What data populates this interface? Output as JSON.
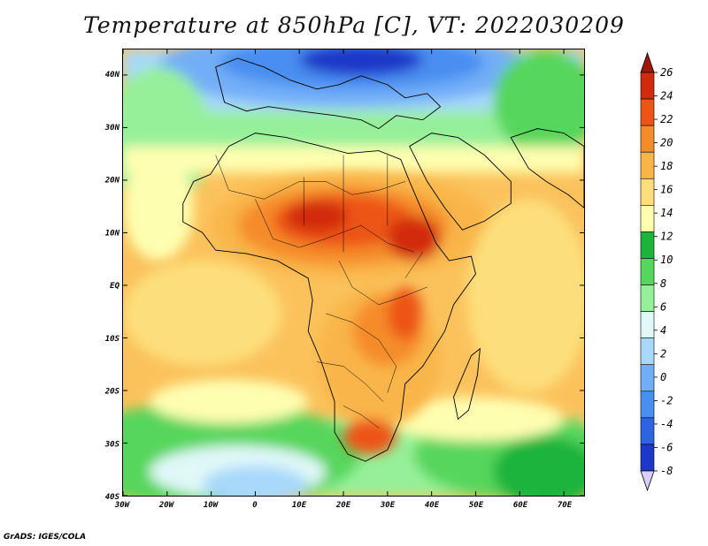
{
  "title": "Temperature at 850hPa [C], VT: 2022030209",
  "credit": "GrADS: IGES/COLA",
  "map": {
    "lon_labels": [
      "30W",
      "20W",
      "10W",
      "0",
      "10E",
      "20E",
      "30E",
      "40E",
      "50E",
      "60E",
      "70E"
    ],
    "lat_labels": [
      "40N",
      "30N",
      "20N",
      "10N",
      "EQ",
      "10S",
      "20S",
      "30S",
      "40S"
    ]
  },
  "colorbar": {
    "colors": [
      "#0a0a70",
      "#1d38c8",
      "#2e64e0",
      "#4a8ef0",
      "#72aef8",
      "#a8d8fa",
      "#e0f8f8",
      "#96f09a",
      "#56d65c",
      "#1eb43c",
      "#fefeb0",
      "#fcdf7c",
      "#f9b548",
      "#f58c2a",
      "#ec5516",
      "#d22a0e",
      "#a01808"
    ],
    "labels": [
      "26",
      "24",
      "22",
      "20",
      "18",
      "16",
      "14",
      "12",
      "10",
      "8",
      "6",
      "4",
      "2",
      "0",
      "-2",
      "-4",
      "-6",
      "-8"
    ]
  }
}
